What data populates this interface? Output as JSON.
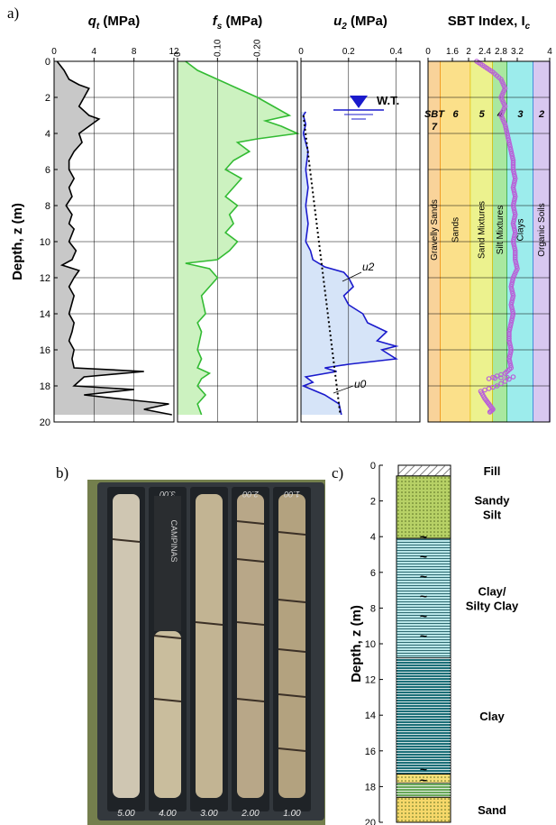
{
  "panel_labels": {
    "a": "a)",
    "b": "b)",
    "c": "c)"
  },
  "chart_data": [
    {
      "type": "line",
      "title": "qt (MPa)",
      "title_symbol": "q",
      "title_subscript": "t",
      "title_unit": " (MPa)",
      "ylabel": "Depth, z (m)",
      "xlim": [
        0,
        12
      ],
      "ylim": [
        0,
        20
      ],
      "y_inverted": true,
      "xticks": [
        "0",
        "4",
        "8",
        "12"
      ],
      "yticks": [
        "0",
        "2",
        "4",
        "6",
        "8",
        "10",
        "12",
        "14",
        "16",
        "18",
        "20"
      ],
      "grid": true,
      "fill_color": "#c8c8c8",
      "line_color": "#000000",
      "series": [
        {
          "points": [
            [
              0.3,
              0
            ],
            [
              1,
              0.5
            ],
            [
              1.5,
              1
            ],
            [
              2.5,
              1.3
            ],
            [
              3.5,
              1.5
            ],
            [
              3,
              2
            ],
            [
              2.5,
              2.5
            ],
            [
              3.5,
              3
            ],
            [
              4.5,
              3.2
            ],
            [
              3.5,
              3.6
            ],
            [
              2.5,
              4
            ],
            [
              2.8,
              4.5
            ],
            [
              2,
              5
            ],
            [
              1.5,
              5.5
            ],
            [
              1.5,
              6
            ],
            [
              2,
              6.5
            ],
            [
              1.5,
              7
            ],
            [
              1.8,
              7.5
            ],
            [
              1.2,
              8
            ],
            [
              1.8,
              8.5
            ],
            [
              1.5,
              9
            ],
            [
              2,
              9.3
            ],
            [
              1.5,
              10
            ],
            [
              2.2,
              10.5
            ],
            [
              1.8,
              11
            ],
            [
              0.8,
              11.3
            ],
            [
              2.5,
              11.6
            ],
            [
              2,
              12
            ],
            [
              1.5,
              12.5
            ],
            [
              2,
              13
            ],
            [
              1.5,
              14
            ],
            [
              2,
              14.5
            ],
            [
              1.8,
              15
            ],
            [
              1.5,
              15.5
            ],
            [
              2,
              16
            ],
            [
              1.8,
              16.5
            ],
            [
              2,
              17
            ],
            [
              9,
              17.2
            ],
            [
              3,
              17.5
            ],
            [
              2,
              18
            ],
            [
              8,
              18.2
            ],
            [
              3,
              18.5
            ],
            [
              8,
              18.8
            ],
            [
              11.5,
              19
            ],
            [
              9,
              19.3
            ],
            [
              11.8,
              19.6
            ]
          ]
        }
      ]
    },
    {
      "type": "line",
      "title": "fs (MPa)",
      "title_symbol": "f",
      "title_subscript": "s",
      "title_unit": " (MPa)",
      "xlim": [
        0,
        0.3
      ],
      "ylim": [
        0,
        20
      ],
      "y_inverted": true,
      "xticks": [
        "0",
        "0.10",
        "0.20"
      ],
      "grid": true,
      "fill_color": "#ccf2c0",
      "line_color": "#33bb33",
      "series": [
        {
          "points": [
            [
              0.02,
              0
            ],
            [
              0.05,
              0.5
            ],
            [
              0.1,
              1
            ],
            [
              0.15,
              1.5
            ],
            [
              0.2,
              2
            ],
            [
              0.24,
              2.5
            ],
            [
              0.28,
              3
            ],
            [
              0.22,
              3.3
            ],
            [
              0.26,
              3.6
            ],
            [
              0.3,
              4
            ],
            [
              0.2,
              4.3
            ],
            [
              0.15,
              4.5
            ],
            [
              0.18,
              5
            ],
            [
              0.14,
              5.5
            ],
            [
              0.12,
              6
            ],
            [
              0.16,
              6.5
            ],
            [
              0.14,
              7
            ],
            [
              0.12,
              7.5
            ],
            [
              0.15,
              8
            ],
            [
              0.13,
              8.5
            ],
            [
              0.14,
              9
            ],
            [
              0.12,
              9.5
            ],
            [
              0.15,
              10
            ],
            [
              0.13,
              10.5
            ],
            [
              0.1,
              11
            ],
            [
              0.02,
              11.2
            ],
            [
              0.08,
              11.5
            ],
            [
              0.1,
              12
            ],
            [
              0.08,
              12.5
            ],
            [
              0.06,
              13
            ],
            [
              0.07,
              14
            ],
            [
              0.05,
              14.5
            ],
            [
              0.06,
              15
            ],
            [
              0.05,
              16
            ],
            [
              0.06,
              16.5
            ],
            [
              0.05,
              17
            ],
            [
              0.08,
              17.3
            ],
            [
              0.06,
              17.6
            ],
            [
              0.05,
              18
            ],
            [
              0.07,
              18.5
            ],
            [
              0.05,
              19
            ],
            [
              0.06,
              19.6
            ]
          ]
        }
      ]
    },
    {
      "type": "line",
      "title": "u2 (MPa)",
      "title_symbol": "u",
      "title_subscript": "2",
      "title_unit": " (MPa)",
      "xlim": [
        0,
        0.5
      ],
      "ylim": [
        0,
        20
      ],
      "y_inverted": true,
      "xticks": [
        "0",
        "0.2",
        "0.4"
      ],
      "grid": true,
      "fill_color": "#d6e4f8",
      "line_color": "#1a1acc",
      "annotations": {
        "water_table": "W.T.",
        "u2_label": "u2",
        "u0_label": "u0"
      },
      "water_table_depth": 2.9,
      "series": [
        {
          "name": "u2",
          "points": [
            [
              0.02,
              2.8
            ],
            [
              0.01,
              3
            ],
            [
              0.02,
              3.5
            ],
            [
              0.01,
              4
            ],
            [
              0.03,
              5
            ],
            [
              0.02,
              6
            ],
            [
              0.03,
              7
            ],
            [
              0.02,
              8
            ],
            [
              0.03,
              9
            ],
            [
              0.02,
              10
            ],
            [
              0.04,
              10.5
            ],
            [
              0.05,
              11
            ],
            [
              0.1,
              11.4
            ],
            [
              0.18,
              11.7
            ],
            [
              0.2,
              12
            ],
            [
              0.22,
              12.5
            ],
            [
              0.18,
              13
            ],
            [
              0.2,
              13.5
            ],
            [
              0.26,
              14
            ],
            [
              0.28,
              14.5
            ],
            [
              0.36,
              15
            ],
            [
              0.32,
              15.5
            ],
            [
              0.4,
              15.8
            ],
            [
              0.34,
              16
            ],
            [
              0.4,
              16.5
            ],
            [
              0.2,
              16.8
            ],
            [
              0.1,
              17
            ],
            [
              0.15,
              17.2
            ],
            [
              0.02,
              17.5
            ],
            [
              0.05,
              17.8
            ],
            [
              0.01,
              18
            ],
            [
              0.1,
              18.5
            ],
            [
              0.16,
              19
            ],
            [
              0.17,
              19.6
            ]
          ]
        },
        {
          "name": "u0",
          "points": [
            [
              0.01,
              3
            ],
            [
              0.165,
              19.6
            ]
          ]
        }
      ]
    },
    {
      "type": "scatter",
      "title": "SBT Index, Ic",
      "title_symbol": "SBT Index, I",
      "title_subscript": "c",
      "xlim": [
        1,
        4
      ],
      "ylim": [
        0,
        20
      ],
      "y_inverted": true,
      "xticks": [
        "0",
        "1.6",
        "2",
        "2.4",
        "2.8",
        "3.2",
        "4"
      ],
      "marker_color": "#b860d8",
      "zones": [
        {
          "number": "SBT\n7",
          "name": "Gravelly Sands",
          "from": 1.0,
          "to": 1.31,
          "color": "#f9d39a"
        },
        {
          "number": "6",
          "name": "Sands",
          "from": 1.31,
          "to": 2.05,
          "color": "#fbe08a"
        },
        {
          "number": "5",
          "name": "Sand Mixtures",
          "from": 2.05,
          "to": 2.6,
          "color": "#ecf28e"
        },
        {
          "number": "4",
          "name": "Silt Mixtures",
          "from": 2.6,
          "to": 2.95,
          "color": "#a9e8a0"
        },
        {
          "number": "3",
          "name": "Clays",
          "from": 2.95,
          "to": 3.6,
          "color": "#9cecec"
        },
        {
          "number": "2",
          "name": "Organic Soils",
          "from": 3.6,
          "to": 4.0,
          "color": "#d8c8f0"
        }
      ],
      "series": [
        {
          "points": [
            [
              2.2,
              0
            ],
            [
              2.4,
              0.3
            ],
            [
              2.6,
              0.6
            ],
            [
              2.8,
              1
            ],
            [
              2.9,
              1.5
            ],
            [
              2.8,
              2
            ],
            [
              2.9,
              2.5
            ],
            [
              2.8,
              3
            ],
            [
              2.9,
              3.5
            ],
            [
              2.95,
              4
            ],
            [
              3,
              4.5
            ],
            [
              3.05,
              5
            ],
            [
              3.1,
              5.5
            ],
            [
              3.1,
              6
            ],
            [
              3.15,
              6.5
            ],
            [
              3.1,
              7
            ],
            [
              3.15,
              7.5
            ],
            [
              3.1,
              8
            ],
            [
              3.15,
              8.5
            ],
            [
              3.1,
              9
            ],
            [
              3.15,
              9.5
            ],
            [
              3.1,
              10
            ],
            [
              3.15,
              10.5
            ],
            [
              3.15,
              11
            ],
            [
              3.2,
              11.5
            ],
            [
              3.1,
              12
            ],
            [
              3.05,
              12.5
            ],
            [
              3.1,
              13
            ],
            [
              3.05,
              13.5
            ],
            [
              3.1,
              14
            ],
            [
              3.05,
              14.5
            ],
            [
              3.0,
              15
            ],
            [
              3.0,
              15.5
            ],
            [
              3.05,
              16
            ],
            [
              3.0,
              16.5
            ],
            [
              3.05,
              17
            ],
            [
              2.9,
              17.3
            ],
            [
              2.5,
              17.6
            ],
            [
              3.1,
              17.5
            ],
            [
              2.7,
              18
            ],
            [
              2.3,
              18.3
            ],
            [
              2.4,
              18.7
            ],
            [
              2.5,
              19
            ],
            [
              2.6,
              19.3
            ],
            [
              2.5,
              19.5
            ]
          ]
        }
      ]
    },
    {
      "type": "table",
      "title": "Soil log",
      "ylabel": "Depth, z (m)",
      "ylim": [
        0,
        20
      ],
      "y_inverted": true,
      "yticks": [
        "0",
        "2",
        "4",
        "6",
        "8",
        "10",
        "12",
        "14",
        "16",
        "18",
        "20"
      ],
      "layers": [
        {
          "name": "Fill",
          "top": 0,
          "bottom": 0.6,
          "color": "#ffffff",
          "pattern": "hatch"
        },
        {
          "name": "Sandy\nSilt",
          "top": 0.6,
          "bottom": 4.1,
          "color": "#b7d166",
          "pattern": "dots"
        },
        {
          "name": "Clay/\nSilty Clay",
          "top": 4.1,
          "bottom": 10.8,
          "color": "#b9e6e8",
          "pattern": "lines"
        },
        {
          "name": "Clay",
          "top": 10.8,
          "bottom": 17.3,
          "color": "#1c6f78",
          "pattern": "lines"
        },
        {
          "name": "",
          "top": 17.3,
          "bottom": 17.8,
          "color": "#f6e07a",
          "pattern": "dots"
        },
        {
          "name": "",
          "top": 17.8,
          "bottom": 18.6,
          "color": "#69a85a",
          "pattern": "lines"
        },
        {
          "name": "Sand",
          "top": 18.6,
          "bottom": 20,
          "color": "#f6d86a",
          "pattern": "dots"
        }
      ]
    }
  ],
  "photo": {
    "box_labels": [
      "5.00",
      "4.00",
      "3.00",
      "2.00",
      "1.00"
    ],
    "top_labels": [
      "",
      "3.00",
      "",
      "2.00",
      "1.00"
    ],
    "core_label": "CAMPINAS"
  }
}
